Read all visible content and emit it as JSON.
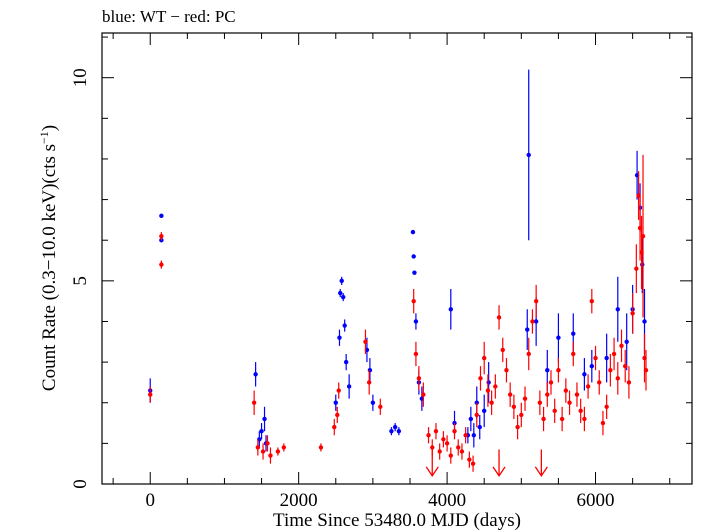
{
  "chart_data": {
    "type": "scatter",
    "title": "blue: WT − red: PC",
    "xlabel": "Time Since 53480.0 MJD (days)",
    "ylabel": {
      "before": "Count Rate (0.3−10.0 keV)(cts s",
      "exponent": "−1",
      "after": ")"
    },
    "xlim": [
      -650,
      7300
    ],
    "ylim": [
      0,
      11.1
    ],
    "xticks": [
      0,
      2000,
      4000,
      6000
    ],
    "xtick_labels": [
      "0",
      "2000",
      "4000",
      "6000"
    ],
    "yticks": [
      0,
      5,
      10
    ],
    "ytick_labels": [
      "0",
      "5",
      "10"
    ],
    "grid": false,
    "legend": "none",
    "series": [
      {
        "name": "WT",
        "color": "#0000ff",
        "points": [
          [
            0,
            2.3,
            0.3
          ],
          [
            150,
            6.6,
            0.05
          ],
          [
            150,
            6.0,
            0.05
          ],
          [
            1420,
            2.7,
            0.3
          ],
          [
            1470,
            1.1,
            0.2
          ],
          [
            1500,
            1.3,
            0.2
          ],
          [
            1540,
            1.6,
            0.3
          ],
          [
            1560,
            1.0,
            0.2
          ],
          [
            2500,
            2.0,
            0.2
          ],
          [
            2550,
            3.6,
            0.2
          ],
          [
            2560,
            4.7,
            0.1
          ],
          [
            2580,
            5.0,
            0.1
          ],
          [
            2600,
            4.6,
            0.1
          ],
          [
            2620,
            3.9,
            0.15
          ],
          [
            2640,
            3.0,
            0.2
          ],
          [
            2680,
            2.4,
            0.3
          ],
          [
            2920,
            3.3,
            0.3
          ],
          [
            2960,
            2.8,
            0.3
          ],
          [
            3000,
            2.0,
            0.2
          ],
          [
            3250,
            1.3,
            0.1
          ],
          [
            3300,
            1.4,
            0.1
          ],
          [
            3350,
            1.3,
            0.1
          ],
          [
            3540,
            6.2,
            0.05
          ],
          [
            3550,
            5.6,
            0.05
          ],
          [
            3560,
            5.2,
            0.05
          ],
          [
            3580,
            4.0,
            0.2
          ],
          [
            3620,
            2.5,
            0.3
          ],
          [
            3660,
            2.1,
            0.3
          ],
          [
            4050,
            4.3,
            0.5
          ],
          [
            4100,
            1.5,
            0.3
          ],
          [
            4280,
            1.2,
            0.2
          ],
          [
            4320,
            1.6,
            0.3
          ],
          [
            4360,
            1.2,
            0.3
          ],
          [
            4400,
            2.0,
            0.4
          ],
          [
            4440,
            1.4,
            0.3
          ],
          [
            4500,
            1.8,
            0.4
          ],
          [
            4560,
            2.5,
            0.5
          ],
          [
            5100,
            8.1,
            2.1
          ],
          [
            5080,
            3.8,
            0.5
          ],
          [
            5200,
            4.0,
            0.6
          ],
          [
            5350,
            2.8,
            0.5
          ],
          [
            5500,
            3.6,
            0.6
          ],
          [
            5700,
            3.7,
            0.5
          ],
          [
            5850,
            2.7,
            0.4
          ],
          [
            5950,
            2.9,
            0.4
          ],
          [
            6150,
            3.1,
            0.6
          ],
          [
            6300,
            4.3,
            0.8
          ],
          [
            6420,
            3.5,
            0.7
          ],
          [
            6500,
            4.3,
            0.6
          ],
          [
            6560,
            7.6,
            0.6
          ],
          [
            6600,
            6.8,
            0.6
          ],
          [
            6630,
            5.4,
            0.7
          ],
          [
            6660,
            4.0,
            0.8
          ]
        ]
      },
      {
        "name": "PC",
        "color": "#ff0000",
        "points": [
          [
            0,
            2.2,
            0.2
          ],
          [
            150,
            6.1,
            0.1
          ],
          [
            150,
            5.4,
            0.1
          ],
          [
            1400,
            2.0,
            0.3
          ],
          [
            1450,
            0.9,
            0.2
          ],
          [
            1520,
            0.8,
            0.2
          ],
          [
            1580,
            1.0,
            0.2
          ],
          [
            1620,
            0.7,
            0.2
          ],
          [
            1720,
            0.8,
            0.1
          ],
          [
            1800,
            0.9,
            0.1
          ],
          [
            2300,
            0.9,
            0.1
          ],
          [
            2480,
            1.4,
            0.2
          ],
          [
            2520,
            1.7,
            0.2
          ],
          [
            2540,
            2.3,
            0.2
          ],
          [
            2900,
            3.5,
            0.3
          ],
          [
            2950,
            2.5,
            0.3
          ],
          [
            3100,
            1.9,
            0.2
          ],
          [
            3550,
            4.5,
            0.3
          ],
          [
            3580,
            3.2,
            0.3
          ],
          [
            3620,
            2.6,
            0.3
          ],
          [
            3680,
            2.2,
            0.3
          ],
          [
            3750,
            1.2,
            0.2
          ],
          [
            3800,
            0.9,
            0.2
          ],
          [
            3850,
            1.3,
            0.2
          ],
          [
            3900,
            0.8,
            0.2
          ],
          [
            3950,
            1.1,
            0.2
          ],
          [
            4000,
            1.0,
            0.2
          ],
          [
            4050,
            0.7,
            0.2
          ],
          [
            4100,
            1.3,
            0.2
          ],
          [
            4150,
            0.9,
            0.2
          ],
          [
            4200,
            0.8,
            0.2
          ],
          [
            4250,
            1.2,
            0.2
          ],
          [
            4300,
            0.6,
            0.2
          ],
          [
            4350,
            0.5,
            0.2
          ],
          [
            4400,
            1.7,
            0.3
          ],
          [
            4450,
            2.6,
            0.3
          ],
          [
            4500,
            3.1,
            0.4
          ],
          [
            4550,
            2.3,
            0.4
          ],
          [
            4600,
            2.0,
            0.3
          ],
          [
            4650,
            2.4,
            0.3
          ],
          [
            4700,
            4.1,
            0.3
          ],
          [
            4750,
            3.3,
            0.3
          ],
          [
            4800,
            2.8,
            0.3
          ],
          [
            4850,
            2.2,
            0.3
          ],
          [
            4900,
            1.9,
            0.3
          ],
          [
            4950,
            1.4,
            0.3
          ],
          [
            5000,
            1.7,
            0.3
          ],
          [
            5050,
            2.1,
            0.3
          ],
          [
            5100,
            3.2,
            0.4
          ],
          [
            5150,
            4.0,
            0.3
          ],
          [
            5200,
            4.5,
            0.4
          ],
          [
            5250,
            2.0,
            0.3
          ],
          [
            5300,
            1.6,
            0.3
          ],
          [
            5350,
            2.2,
            0.3
          ],
          [
            5400,
            2.5,
            0.3
          ],
          [
            5450,
            1.8,
            0.3
          ],
          [
            5500,
            2.8,
            0.3
          ],
          [
            5550,
            1.6,
            0.3
          ],
          [
            5600,
            2.3,
            0.3
          ],
          [
            5650,
            2.0,
            0.3
          ],
          [
            5700,
            3.2,
            0.3
          ],
          [
            5750,
            2.2,
            0.3
          ],
          [
            5800,
            1.8,
            0.3
          ],
          [
            5850,
            1.6,
            0.3
          ],
          [
            5900,
            2.4,
            0.3
          ],
          [
            5950,
            4.5,
            0.3
          ],
          [
            6000,
            3.1,
            0.3
          ],
          [
            6050,
            2.5,
            0.3
          ],
          [
            6100,
            1.5,
            0.3
          ],
          [
            6150,
            1.9,
            0.3
          ],
          [
            6200,
            2.8,
            0.4
          ],
          [
            6250,
            3.2,
            0.4
          ],
          [
            6300,
            2.6,
            0.4
          ],
          [
            6350,
            3.4,
            0.4
          ],
          [
            6400,
            2.9,
            0.4
          ],
          [
            6450,
            2.5,
            0.4
          ],
          [
            6500,
            4.2,
            0.5
          ],
          [
            6550,
            5.3,
            0.6
          ],
          [
            6580,
            7.1,
            0.6
          ],
          [
            6600,
            6.3,
            0.8
          ],
          [
            6620,
            5.7,
            0.9
          ],
          [
            6640,
            6.1,
            2.0
          ],
          [
            6660,
            3.1,
            0.6
          ],
          [
            6680,
            2.8,
            0.5
          ]
        ],
        "upper_limits": [
          3800,
          4700,
          5270
        ]
      }
    ]
  }
}
